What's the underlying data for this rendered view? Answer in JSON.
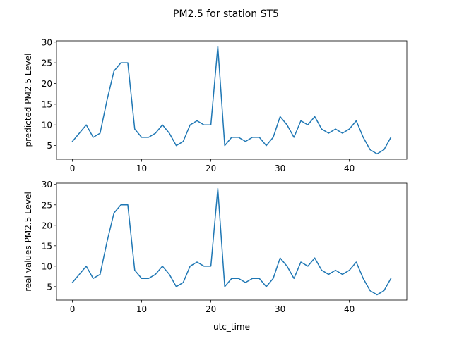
{
  "figure": {
    "title": "PM2.5 for station ST5"
  },
  "chart_data": [
    {
      "type": "line",
      "ylabel": "predicted PM2.5 Level",
      "xlabel": "",
      "xlim": [
        -2.3,
        48.3
      ],
      "ylim": [
        1.7,
        30.3
      ],
      "xticks": [
        0,
        10,
        20,
        30,
        40
      ],
      "yticks": [
        5,
        10,
        15,
        20,
        25,
        30
      ],
      "grid": false,
      "color": "#1f77b4",
      "series": [
        {
          "x": [
            0,
            1,
            2,
            3,
            4,
            5,
            6,
            7,
            8,
            9,
            10,
            11,
            12,
            13,
            14,
            15,
            16,
            17,
            18,
            19,
            20,
            21,
            22,
            23,
            24,
            25,
            26,
            27,
            28,
            29,
            30,
            31,
            32,
            33,
            34,
            35,
            36,
            37,
            38,
            39,
            40,
            41,
            42,
            43,
            44,
            45,
            46
          ],
          "y": [
            6,
            8,
            10,
            7,
            8,
            16,
            23,
            25,
            25,
            9,
            7,
            7,
            8,
            10,
            8,
            5,
            6,
            10,
            11,
            10,
            10,
            29,
            5,
            7,
            7,
            6,
            7,
            7,
            5,
            7,
            12,
            10,
            7,
            11,
            10,
            12,
            9,
            8,
            9,
            8,
            9,
            11,
            7,
            4,
            3,
            4,
            7
          ]
        }
      ]
    },
    {
      "type": "line",
      "ylabel": "real values PM2.5 Level",
      "xlabel": "utc_time",
      "xlim": [
        -2.3,
        48.3
      ],
      "ylim": [
        1.7,
        30.3
      ],
      "xticks": [
        0,
        10,
        20,
        30,
        40
      ],
      "yticks": [
        5,
        10,
        15,
        20,
        25,
        30
      ],
      "grid": false,
      "color": "#1f77b4",
      "series": [
        {
          "x": [
            0,
            1,
            2,
            3,
            4,
            5,
            6,
            7,
            8,
            9,
            10,
            11,
            12,
            13,
            14,
            15,
            16,
            17,
            18,
            19,
            20,
            21,
            22,
            23,
            24,
            25,
            26,
            27,
            28,
            29,
            30,
            31,
            32,
            33,
            34,
            35,
            36,
            37,
            38,
            39,
            40,
            41,
            42,
            43,
            44,
            45,
            46
          ],
          "y": [
            6,
            8,
            10,
            7,
            8,
            16,
            23,
            25,
            25,
            9,
            7,
            7,
            8,
            10,
            8,
            5,
            6,
            10,
            11,
            10,
            10,
            29,
            5,
            7,
            7,
            6,
            7,
            7,
            5,
            7,
            12,
            10,
            7,
            11,
            10,
            12,
            9,
            8,
            9,
            8,
            9,
            11,
            7,
            4,
            3,
            4,
            7
          ]
        }
      ]
    }
  ]
}
